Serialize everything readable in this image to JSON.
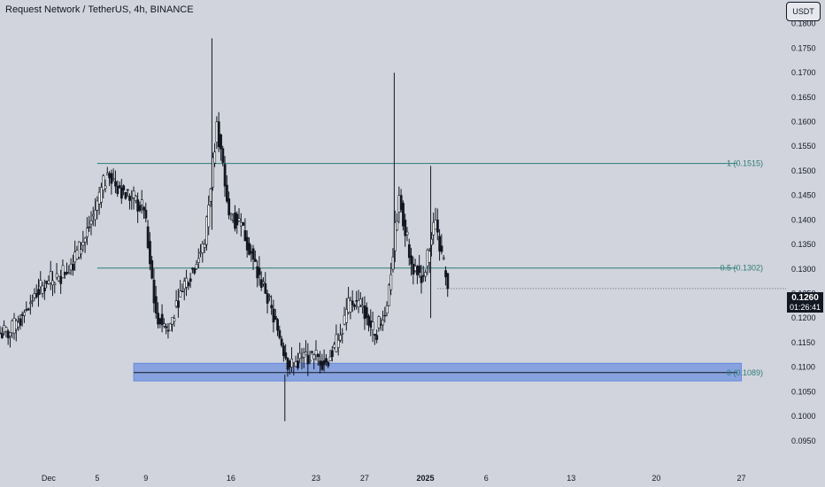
{
  "header": {
    "title": "Request Network / TetherUS, 4h, BINANCE"
  },
  "currency": "USDT",
  "last_price": {
    "price": "0.1260",
    "countdown": "01:26:41"
  },
  "colors": {
    "background": "#d1d4dc",
    "candle": "#131722",
    "fib_line": "#2e7c77",
    "zone": "#4a78e0",
    "text": "#131722"
  },
  "chart_data": {
    "type": "candlestick",
    "title": "Request Network / TetherUS, 4h, BINANCE",
    "y_ticks": [
      0.095,
      0.1,
      0.105,
      0.11,
      0.115,
      0.12,
      0.125,
      0.13,
      0.135,
      0.14,
      0.145,
      0.15,
      0.155,
      0.16,
      0.165,
      0.17,
      0.175,
      0.18
    ],
    "y_tick_labels": [
      "0.0950",
      "0.1000",
      "0.1050",
      "0.1100",
      "0.1150",
      "0.1200",
      "0.1250",
      "0.1300",
      "0.1350",
      "0.1400",
      "0.1450",
      "0.1500",
      "0.1550",
      "0.1600",
      "0.1650",
      "0.1700",
      "0.1750",
      "0.1800"
    ],
    "ylim": [
      0.091,
      0.183
    ],
    "x_ticks": [
      {
        "date": "2024-12-01",
        "label": "Dec"
      },
      {
        "date": "2024-12-05",
        "label": "5"
      },
      {
        "date": "2024-12-09",
        "label": "9"
      },
      {
        "date": "2024-12-16",
        "label": "16"
      },
      {
        "date": "2024-12-23",
        "label": "23"
      },
      {
        "date": "2024-12-27",
        "label": "27"
      },
      {
        "date": "2025-01-01",
        "label": "2025"
      },
      {
        "date": "2025-01-06",
        "label": "6"
      },
      {
        "date": "2025-01-13",
        "label": "13"
      },
      {
        "date": "2025-01-20",
        "label": "20"
      },
      {
        "date": "2025-01-27",
        "label": "27"
      }
    ],
    "xlim": [
      "2024-11-27",
      "2025-01-29"
    ],
    "fib_levels": [
      {
        "level": "1",
        "price": 0.1515,
        "label": "1 (0.1515)"
      },
      {
        "level": "0.5",
        "price": 0.1302,
        "label": "0.5 (0.1302)"
      },
      {
        "level": "0",
        "price": 0.1089,
        "label": "0 (0.1089)"
      }
    ],
    "zone": {
      "from": 0.1072,
      "to": 0.1108,
      "start": "2024-12-08",
      "end": "2025-01-27"
    },
    "series": [
      {
        "date": "2024-11-27",
        "close": 0.117
      },
      {
        "date": "2024-11-28",
        "close": 0.1205
      },
      {
        "date": "2024-11-29",
        "close": 0.125
      },
      {
        "date": "2024-11-30",
        "close": 0.127
      },
      {
        "date": "2024-12-01",
        "close": 0.1285
      },
      {
        "date": "2024-12-02",
        "close": 0.131
      },
      {
        "date": "2024-12-03",
        "close": 0.1355
      },
      {
        "date": "2024-12-04",
        "close": 0.142
      },
      {
        "date": "2024-12-05",
        "close": 0.1495
      },
      {
        "date": "2024-12-06",
        "close": 0.1465
      },
      {
        "date": "2024-12-07",
        "close": 0.1445
      },
      {
        "date": "2024-12-08",
        "close": 0.142
      },
      {
        "date": "2024-12-09",
        "close": 0.121
      },
      {
        "date": "2024-12-10",
        "close": 0.1175
      },
      {
        "date": "2024-12-11",
        "close": 0.1255
      },
      {
        "date": "2024-12-12",
        "close": 0.13
      },
      {
        "date": "2024-12-13",
        "close": 0.135
      },
      {
        "date": "2024-12-14",
        "close": 0.16
      },
      {
        "date": "2024-12-15",
        "close": 0.141
      },
      {
        "date": "2024-12-16",
        "close": 0.1395
      },
      {
        "date": "2024-12-17",
        "close": 0.132
      },
      {
        "date": "2024-12-18",
        "close": 0.125
      },
      {
        "date": "2024-12-19",
        "close": 0.1175
      },
      {
        "date": "2024-12-20",
        "close": 0.11
      },
      {
        "date": "2024-12-21",
        "close": 0.112
      },
      {
        "date": "2024-12-22",
        "close": 0.1125
      },
      {
        "date": "2024-12-23",
        "close": 0.111
      },
      {
        "date": "2024-12-24",
        "close": 0.1155
      },
      {
        "date": "2024-12-25",
        "close": 0.1235
      },
      {
        "date": "2024-12-26",
        "close": 0.1225
      },
      {
        "date": "2024-12-27",
        "close": 0.1165
      },
      {
        "date": "2024-12-28",
        "close": 0.1225
      },
      {
        "date": "2024-12-29",
        "close": 0.145
      },
      {
        "date": "2024-12-30",
        "close": 0.131
      },
      {
        "date": "2024-12-31",
        "close": 0.1285
      },
      {
        "date": "2025-01-01",
        "close": 0.14
      },
      {
        "date": "2025-01-02",
        "close": 0.126
      }
    ]
  }
}
